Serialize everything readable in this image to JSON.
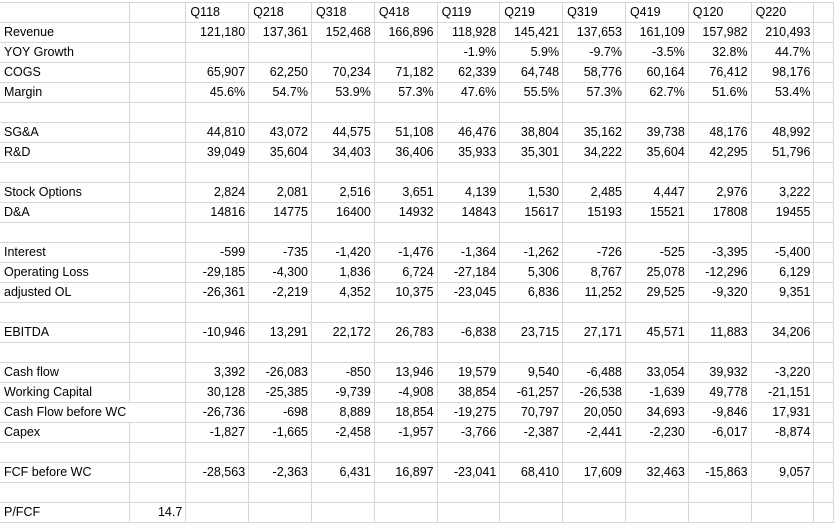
{
  "spreadsheet": {
    "quarter_headers": [
      "Q118",
      "Q218",
      "Q318",
      "Q418",
      "Q119",
      "Q219",
      "Q319",
      "Q419",
      "Q120",
      "Q220"
    ],
    "rows": [
      {
        "label": "Revenue",
        "b": "",
        "values": [
          "121,180",
          "137,361",
          "152,468",
          "166,896",
          "118,928",
          "145,421",
          "137,653",
          "161,109",
          "157,982",
          "210,493"
        ]
      },
      {
        "label": "YOY Growth",
        "b": "",
        "values": [
          "",
          "",
          "",
          "",
          "-1.9%",
          "5.9%",
          "-9.7%",
          "-3.5%",
          "32.8%",
          "44.7%"
        ]
      },
      {
        "label": "COGS",
        "b": "",
        "values": [
          "65,907",
          "62,250",
          "70,234",
          "71,182",
          "62,339",
          "64,748",
          "58,776",
          "60,164",
          "76,412",
          "98,176"
        ]
      },
      {
        "label": "Margin",
        "b": "",
        "values": [
          "45.6%",
          "54.7%",
          "53.9%",
          "57.3%",
          "47.6%",
          "55.5%",
          "57.3%",
          "62.7%",
          "51.6%",
          "53.4%"
        ]
      },
      {
        "label": "",
        "b": "",
        "values": [
          "",
          "",
          "",
          "",
          "",
          "",
          "",
          "",
          "",
          ""
        ]
      },
      {
        "label": "SG&A",
        "b": "",
        "values": [
          "44,810",
          "43,072",
          "44,575",
          "51,108",
          "46,476",
          "38,804",
          "35,162",
          "39,738",
          "48,176",
          "48,992"
        ]
      },
      {
        "label": "R&D",
        "b": "",
        "values": [
          "39,049",
          "35,604",
          "34,403",
          "36,406",
          "35,933",
          "35,301",
          "34,222",
          "35,604",
          "42,295",
          "51,796"
        ]
      },
      {
        "label": "",
        "b": "",
        "values": [
          "",
          "",
          "",
          "",
          "",
          "",
          "",
          "",
          "",
          ""
        ]
      },
      {
        "label": "Stock Options",
        "b": "",
        "values": [
          "2,824",
          "2,081",
          "2,516",
          "3,651",
          "4,139",
          "1,530",
          "2,485",
          "4,447",
          "2,976",
          "3,222"
        ]
      },
      {
        "label": "D&A",
        "b": "",
        "values": [
          "14816",
          "14775",
          "16400",
          "14932",
          "14843",
          "15617",
          "15193",
          "15521",
          "17808",
          "19455"
        ]
      },
      {
        "label": "",
        "b": "",
        "values": [
          "",
          "",
          "",
          "",
          "",
          "",
          "",
          "",
          "",
          ""
        ]
      },
      {
        "label": "Interest",
        "b": "",
        "values": [
          "-599",
          "-735",
          "-1,420",
          "-1,476",
          "-1,364",
          "-1,262",
          "-726",
          "-525",
          "-3,395",
          "-5,400"
        ]
      },
      {
        "label": "Operating Loss",
        "b": "",
        "values": [
          "-29,185",
          "-4,300",
          "1,836",
          "6,724",
          "-27,184",
          "5,306",
          "8,767",
          "25,078",
          "-12,296",
          "6,129"
        ]
      },
      {
        "label": "adjusted OL",
        "b": "",
        "values": [
          "-26,361",
          "-2,219",
          "4,352",
          "10,375",
          "-23,045",
          "6,836",
          "11,252",
          "29,525",
          "-9,320",
          "9,351"
        ]
      },
      {
        "label": "",
        "b": "",
        "values": [
          "",
          "",
          "",
          "",
          "",
          "",
          "",
          "",
          "",
          ""
        ]
      },
      {
        "label": "EBITDA",
        "b": "",
        "values": [
          "-10,946",
          "13,291",
          "22,172",
          "26,783",
          "-6,838",
          "23,715",
          "27,171",
          "45,571",
          "11,883",
          "34,206"
        ]
      },
      {
        "label": "",
        "b": "",
        "values": [
          "",
          "",
          "",
          "",
          "",
          "",
          "",
          "",
          "",
          ""
        ]
      },
      {
        "label": "Cash flow",
        "b": "",
        "values": [
          "3,392",
          "-26,083",
          "-850",
          "13,946",
          "19,579",
          "9,540",
          "-6,488",
          "33,054",
          "39,932",
          "-3,220"
        ]
      },
      {
        "label": "Working Capital",
        "b": "",
        "values": [
          "30,128",
          "-25,385",
          "-9,739",
          "-4,908",
          "38,854",
          "-61,257",
          "-26,538",
          "-1,639",
          "49,778",
          "-21,151"
        ]
      },
      {
        "label": "Cash Flow before WC",
        "b": "",
        "values": [
          "-26,736",
          "-698",
          "8,889",
          "18,854",
          "-19,275",
          "70,797",
          "20,050",
          "34,693",
          "-9,846",
          "17,931"
        ]
      },
      {
        "label": "Capex",
        "b": "",
        "values": [
          "-1,827",
          "-1,665",
          "-2,458",
          "-1,957",
          "-3,766",
          "-2,387",
          "-2,441",
          "-2,230",
          "-6,017",
          "-8,874"
        ]
      },
      {
        "label": "",
        "b": "",
        "values": [
          "",
          "",
          "",
          "",
          "",
          "",
          "",
          "",
          "",
          ""
        ]
      },
      {
        "label": "FCF before WC",
        "b": "",
        "values": [
          "-28,563",
          "-2,363",
          "6,431",
          "16,897",
          "-23,041",
          "68,410",
          "17,609",
          "32,463",
          "-15,863",
          "9,057"
        ]
      },
      {
        "label": "",
        "b": "",
        "values": [
          "",
          "",
          "",
          "",
          "",
          "",
          "",
          "",
          "",
          ""
        ]
      },
      {
        "label": "P/FCF",
        "b": "14.7",
        "values": [
          "",
          "",
          "",
          "",
          "",
          "",
          "",
          "",
          "",
          ""
        ]
      }
    ],
    "colors": {
      "gridline": "#d6d6d6",
      "text": "#000000",
      "background": "#ffffff"
    }
  }
}
